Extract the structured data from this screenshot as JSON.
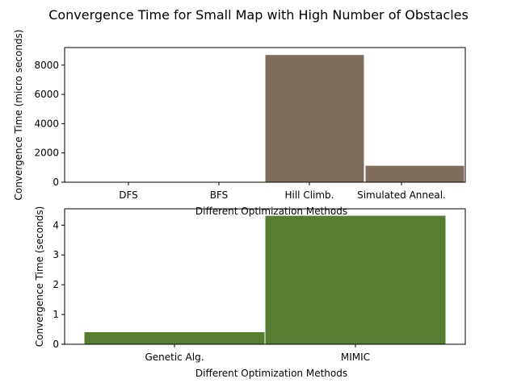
{
  "figure": {
    "title": "Convergence Time for Small Map with High Number of Obstacles"
  },
  "chart_data": [
    {
      "type": "bar",
      "title": "",
      "categories": [
        "DFS",
        "BFS",
        "Hill Climb.",
        "Simulated Anneal."
      ],
      "values": [
        0.5,
        0.5,
        8720,
        1150
      ],
      "xlabel": "Different Optimization Methods",
      "ylabel": "Convergence Time (micro seconds)",
      "ylim": [
        0,
        9200
      ],
      "yticks": [
        0,
        2000,
        4000,
        6000,
        8000
      ],
      "bar_color": "#7f6e5e",
      "grid": false,
      "legend": "none"
    },
    {
      "type": "bar",
      "title": "",
      "categories": [
        "Genetic Alg.",
        "MIMIC"
      ],
      "values": [
        0.42,
        4.33
      ],
      "xlabel": "Different Optimization Methods",
      "ylabel": "Convergence Time (seconds)",
      "ylim": [
        0,
        4.55
      ],
      "yticks": [
        0,
        1,
        2,
        3,
        4
      ],
      "bar_color": "#587f31",
      "grid": false,
      "legend": "none"
    }
  ]
}
